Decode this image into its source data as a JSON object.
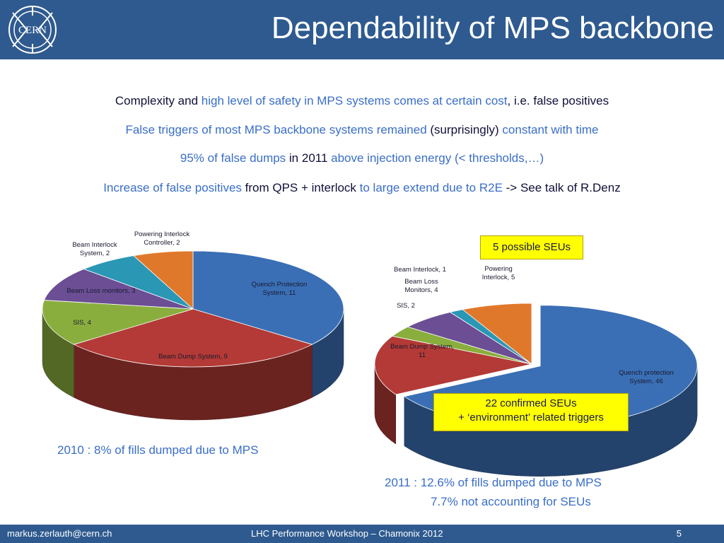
{
  "header": {
    "title": "Dependability of MPS backbone",
    "logo_text": "CERN"
  },
  "bullets": [
    [
      {
        "t": "Complexity and ",
        "c": "k"
      },
      {
        "t": "high level of safety in MPS systems comes at certain cost",
        "c": "b"
      },
      {
        "t": ", i.e. false positives",
        "c": "k"
      }
    ],
    [
      {
        "t": "False triggers of most MPS backbone systems remained ",
        "c": "b"
      },
      {
        "t": "(surprisingly) ",
        "c": "k"
      },
      {
        "t": "constant with time",
        "c": "b"
      }
    ],
    [
      {
        "t": "95% of false dumps ",
        "c": "b"
      },
      {
        "t": "in 2011 ",
        "c": "k"
      },
      {
        "t": "above injection energy (< thresholds,…)",
        "c": "b"
      }
    ],
    [
      {
        "t": "Increase of false positives ",
        "c": "b"
      },
      {
        "t": "from QPS + interlock ",
        "c": "k"
      },
      {
        "t": "to large extend due to R2E ",
        "c": "b"
      },
      {
        "t": "-> See talk of R.Denz",
        "c": "k"
      }
    ]
  ],
  "chart_data": [
    {
      "type": "pie",
      "title": "",
      "slices": [
        {
          "label": "Quench Protection System, 11",
          "value": 11,
          "color": "#3a6fb5"
        },
        {
          "label": "Beam Dump System, 9",
          "value": 9,
          "color": "#b33a36"
        },
        {
          "label": "SIS, 4",
          "value": 4,
          "color": "#8aae3e"
        },
        {
          "label": "Beam Loss monitors, 3",
          "value": 3,
          "color": "#6b4e94"
        },
        {
          "label": "Beam Interlock System, 2",
          "value": 2,
          "color": "#2a97b4"
        },
        {
          "label": "Powering Interlock Controller, 2",
          "value": 2,
          "color": "#e0782c"
        }
      ]
    },
    {
      "type": "pie",
      "title": "",
      "slices": [
        {
          "label": "Quench protection System, 46",
          "value": 46,
          "color": "#3a6fb5"
        },
        {
          "label": "Beam Dump System, 11",
          "value": 11,
          "color": "#b33a36"
        },
        {
          "label": "SIS, 2",
          "value": 2,
          "color": "#8aae3e"
        },
        {
          "label": "Beam Loss Monitors, 4",
          "value": 4,
          "color": "#6b4e94"
        },
        {
          "label": "Beam Interlock, 1",
          "value": 1,
          "color": "#2a97b4"
        },
        {
          "label": "Powering Interlock, 5",
          "value": 5,
          "color": "#e0782c"
        }
      ]
    }
  ],
  "label_lines": {
    "c1": [
      [
        "Quench Protection",
        "System, 11"
      ],
      [
        "Beam Dump System, 9"
      ],
      [
        "SIS, 4"
      ],
      [
        "Beam Loss monitors, 3"
      ],
      [
        "Beam Interlock",
        "System, 2"
      ],
      [
        "Powering Interlock",
        "Controller, 2"
      ]
    ],
    "c2": [
      [
        "Quench protection",
        "System, 46"
      ],
      [
        "Beam Dump System,",
        "11"
      ],
      [
        "SIS, 2"
      ],
      [
        "Beam Loss",
        "Monitors, 4"
      ],
      [
        "Beam Interlock, 1"
      ],
      [
        "Powering",
        "Interlock, 5"
      ]
    ]
  },
  "callouts": {
    "seu_possible": "5 possible SEUs",
    "seu_confirmed_1": "22 confirmed SEUs",
    "seu_confirmed_2": "+ ‘environment’ related triggers"
  },
  "captions": {
    "c2010": "2010 : 8% of fills dumped due to MPS",
    "c2011_1": "2011 : 12.6% of fills dumped due to MPS",
    "c2011_2": "7.7% not accounting for SEUs"
  },
  "footer": {
    "email": "markus.zerlauth@cern.ch",
    "event": "LHC  Performance Workshop – Chamonix 2012",
    "page": "5"
  }
}
